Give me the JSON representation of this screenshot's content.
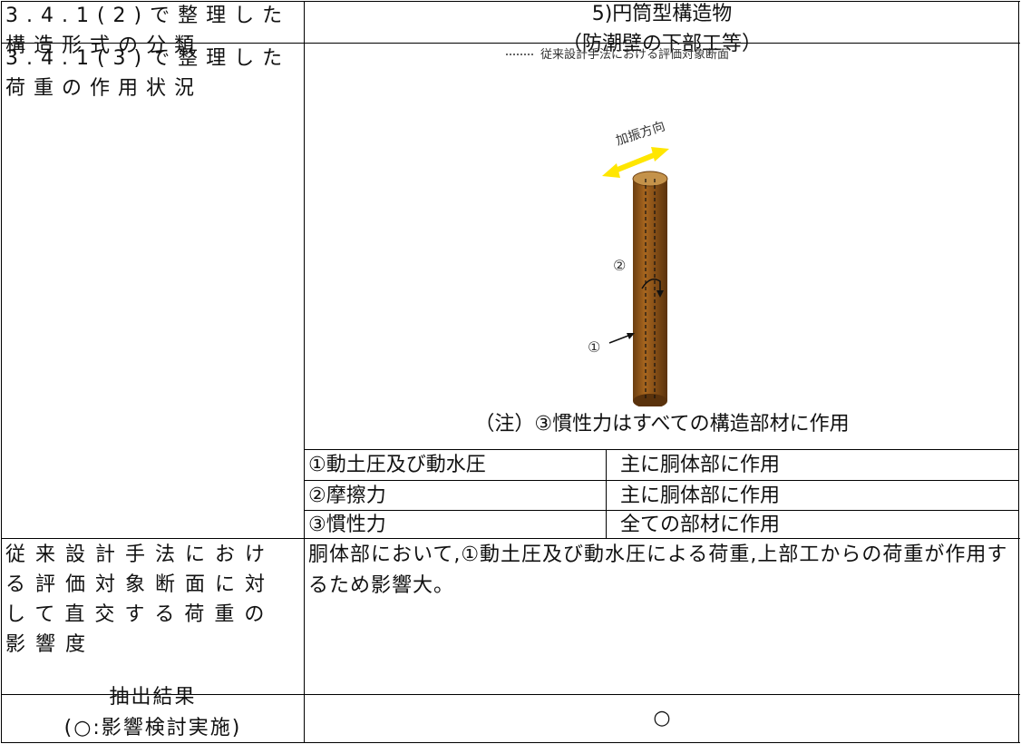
{
  "table": {
    "rows": [
      {
        "label": "3.4.1(2)で整理した構造形式の分類",
        "content": [
          "5)円筒型構造物",
          "（防潮壁の下部工等）"
        ]
      },
      {
        "label": "3.4.1(3)で整理した荷重の作用状況",
        "figure": {
          "legend": "従来設計手法における評価対象断面",
          "direction": "加振方向",
          "markers": [
            "②",
            "①"
          ]
        },
        "note": "（注）③慣性力はすべての構造部材に作用",
        "loads": [
          [
            "①動土圧及び動水圧",
            "主に胴体部に作用"
          ],
          [
            "②摩擦力",
            "主に胴体部に作用"
          ],
          [
            "③慣性力",
            "全ての部材に作用"
          ]
        ]
      },
      {
        "label": "従来設計手法における評価対象断面に対して直交する荷重の影響度",
        "content": "胴体部において,①動土圧及び動水圧による荷重,上部工からの荷重が作用するため影響大。"
      },
      {
        "label": [
          "抽出結果",
          "(○:影響検討実施)"
        ],
        "content": "○"
      }
    ]
  }
}
